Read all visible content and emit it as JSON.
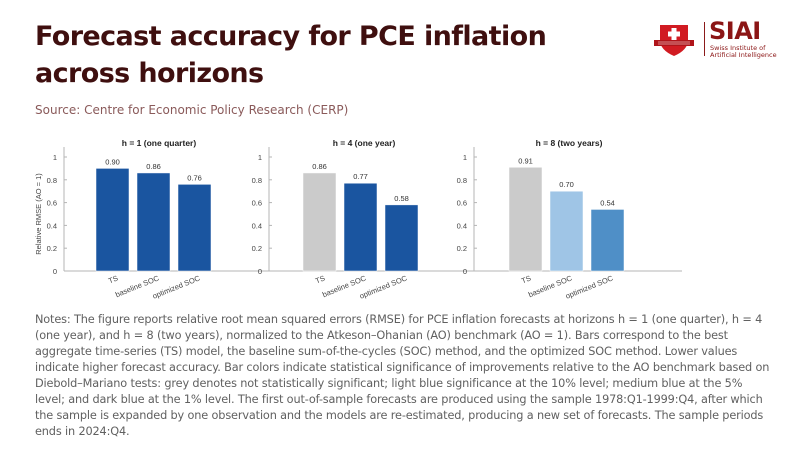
{
  "header": {
    "title": "Forecast accuracy for PCE inflation across horizons",
    "source": "Source: Centre for Economic Policy Research (CERP)"
  },
  "logo": {
    "name": "SIAI",
    "subtitle_line1": "Swiss Institute of",
    "subtitle_line2": "Artificial Intelligence",
    "icon": "swiss-cross-shield-icon",
    "brand_color": "#c8151b"
  },
  "chart_data": [
    {
      "type": "bar",
      "title": "h = 1 (one quarter)",
      "ylabel": "Relative RMSE (AO = 1)",
      "xlabel": "",
      "categories": [
        "TS",
        "baseline SOC",
        "optimized SOC"
      ],
      "values": [
        0.9,
        0.86,
        0.76
      ],
      "value_labels": [
        "0.90",
        "0.86",
        "0.76"
      ],
      "significance": [
        "1%",
        "1%",
        "1%"
      ],
      "colors": [
        "#1a55a0",
        "#1a55a0",
        "#1a55a0"
      ],
      "ylim": [
        0,
        1.1
      ],
      "yticks": [
        0,
        0.2,
        0.4,
        0.6,
        0.8,
        1
      ],
      "ytick_labels": [
        "0",
        "0.2",
        "0.4",
        "0.6",
        "0.8",
        "1"
      ],
      "grid": false
    },
    {
      "type": "bar",
      "title": "h = 4 (one year)",
      "ylabel": "",
      "xlabel": "",
      "categories": [
        "TS",
        "baseline SOC",
        "optimized SOC"
      ],
      "values": [
        0.86,
        0.77,
        0.58
      ],
      "value_labels": [
        "0.86",
        "0.77",
        "0.58"
      ],
      "significance": [
        "not significant",
        "1%",
        "1%"
      ],
      "colors": [
        "#cbcbcb",
        "#1a55a0",
        "#1a55a0"
      ],
      "ylim": [
        0,
        1.1
      ],
      "yticks": [
        0,
        0.2,
        0.4,
        0.6,
        0.8,
        1
      ],
      "ytick_labels": [
        "0",
        "0.2",
        "0.4",
        "0.6",
        "0.8",
        "1"
      ],
      "grid": false
    },
    {
      "type": "bar",
      "title": "h = 8 (two years)",
      "ylabel": "",
      "xlabel": "",
      "categories": [
        "TS",
        "baseline SOC",
        "optimized SOC"
      ],
      "values": [
        0.91,
        0.7,
        0.54
      ],
      "value_labels": [
        "0.91",
        "0.70",
        "0.54"
      ],
      "significance": [
        "not significant",
        "10%",
        "5%"
      ],
      "colors": [
        "#cbcbcb",
        "#9fc5e6",
        "#4f8fc7"
      ],
      "ylim": [
        0,
        1.1
      ],
      "yticks": [
        0,
        0.2,
        0.4,
        0.6,
        0.8,
        1
      ],
      "ytick_labels": [
        "0",
        "0.2",
        "0.4",
        "0.6",
        "0.8",
        "1"
      ],
      "grid": false
    }
  ],
  "notes": "Notes: The figure reports relative root mean squared errors (RMSE) for PCE inflation forecasts at horizons h = 1 (one quarter), h = 4 (one year), and h = 8 (two years), normalized to the Atkeson–Ohanian (AO) benchmark (AO = 1). Bars correspond to the best aggregate time-series (TS) model, the baseline sum-of-the-cycles (SOC) method, and the optimized SOC method. Lower values indicate higher forecast accuracy. Bar colors indicate statistical significance of improvements relative to the AO benchmark based on Diebold–Mariano tests: grey denotes not statistically significant; light blue significance at the 10% level; medium blue at the 5% level; and dark blue at the 1% level. The first out-of-sample forecasts are produced using the sample 1978:Q1-1999:Q4, after which the sample is expanded by one observation and the models are re-estimated, producing a new set of forecasts. The sample periods ends in 2024:Q4."
}
